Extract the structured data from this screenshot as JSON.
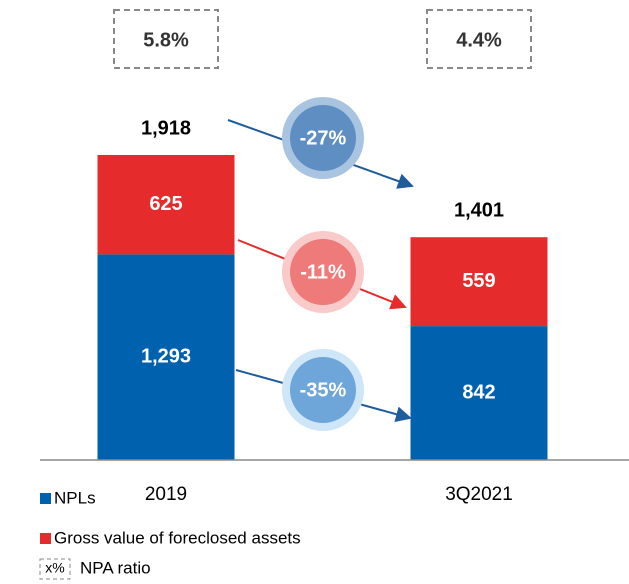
{
  "chart_data": {
    "type": "bar",
    "stacked": true,
    "categories": [
      "2019",
      "3Q2021"
    ],
    "series": [
      {
        "name": "NPLs",
        "color": "#0061ae",
        "values": [
          1293,
          842
        ],
        "value_labels": [
          "1,293",
          "842"
        ]
      },
      {
        "name": "Gross value of foreclosed assets",
        "color": "#e52b2b",
        "values": [
          625,
          559
        ],
        "value_labels": [
          "625",
          "559"
        ]
      }
    ],
    "totals": [
      1918,
      1401
    ],
    "total_labels": [
      "1,918",
      "1,401"
    ],
    "npa_ratio": {
      "name": "NPA ratio",
      "symbol": "x%",
      "values": [
        5.8,
        4.4
      ],
      "value_labels": [
        "5.8%",
        "4.4%"
      ]
    },
    "changes": {
      "values": [
        -27,
        -11,
        -35
      ],
      "labels": [
        "-27%",
        "-11%",
        "-35%"
      ]
    }
  }
}
